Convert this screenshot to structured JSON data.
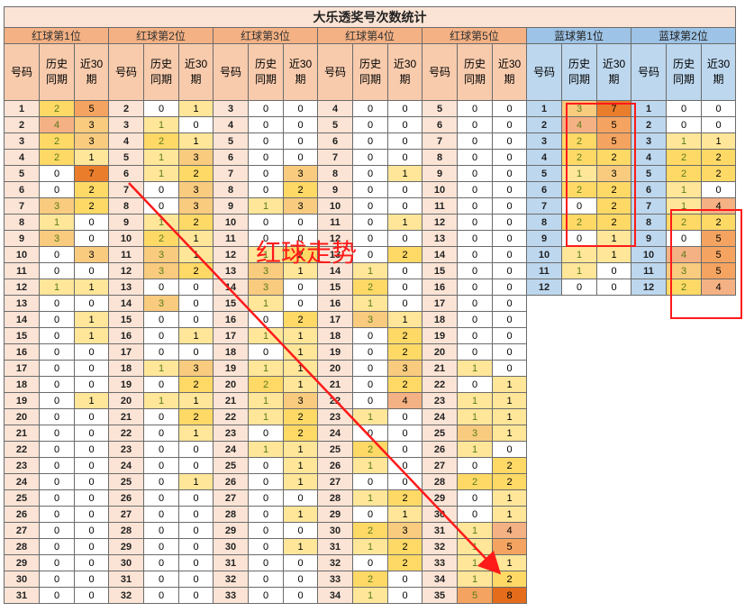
{
  "title": "大乐透奖号次数统计",
  "groups": [
    {
      "label": "红球第1位",
      "type": "red"
    },
    {
      "label": "红球第2位",
      "type": "red"
    },
    {
      "label": "红球第3位",
      "type": "red"
    },
    {
      "label": "红球第4位",
      "type": "red"
    },
    {
      "label": "红球第5位",
      "type": "red"
    },
    {
      "label": "蓝球第1位",
      "type": "blue"
    },
    {
      "label": "蓝球第2位",
      "type": "blue"
    }
  ],
  "col_headers": [
    "号码",
    "历史\n同期",
    "近30\n期"
  ],
  "annotation": "红球走势",
  "rows": [
    [
      [
        1,
        2,
        5
      ],
      [
        2,
        0,
        1
      ],
      [
        3,
        0,
        0
      ],
      [
        4,
        0,
        0
      ],
      [
        5,
        0,
        0
      ],
      [
        1,
        3,
        7
      ],
      [
        1,
        0,
        0
      ]
    ],
    [
      [
        2,
        4,
        3
      ],
      [
        3,
        1,
        0
      ],
      [
        4,
        0,
        0
      ],
      [
        5,
        0,
        0
      ],
      [
        6,
        0,
        0
      ],
      [
        2,
        4,
        5
      ],
      [
        2,
        0,
        0
      ]
    ],
    [
      [
        3,
        2,
        3
      ],
      [
        4,
        2,
        1
      ],
      [
        5,
        0,
        0
      ],
      [
        6,
        0,
        0
      ],
      [
        7,
        0,
        0
      ],
      [
        3,
        2,
        5
      ],
      [
        3,
        1,
        1
      ]
    ],
    [
      [
        4,
        2,
        1
      ],
      [
        5,
        1,
        3
      ],
      [
        6,
        0,
        0
      ],
      [
        7,
        0,
        0
      ],
      [
        8,
        0,
        0
      ],
      [
        4,
        2,
        2
      ],
      [
        4,
        2,
        2
      ]
    ],
    [
      [
        5,
        0,
        7
      ],
      [
        6,
        1,
        2
      ],
      [
        7,
        0,
        3
      ],
      [
        8,
        0,
        1
      ],
      [
        9,
        0,
        0
      ],
      [
        5,
        1,
        3
      ],
      [
        5,
        2,
        2
      ]
    ],
    [
      [
        6,
        0,
        2
      ],
      [
        7,
        0,
        3
      ],
      [
        8,
        0,
        2
      ],
      [
        9,
        0,
        0
      ],
      [
        10,
        0,
        0
      ],
      [
        6,
        2,
        2
      ],
      [
        6,
        1,
        0
      ]
    ],
    [
      [
        7,
        3,
        2
      ],
      [
        8,
        0,
        3
      ],
      [
        9,
        1,
        3
      ],
      [
        10,
        0,
        0
      ],
      [
        11,
        0,
        0
      ],
      [
        7,
        0,
        2
      ],
      [
        7,
        1,
        4
      ]
    ],
    [
      [
        8,
        1,
        0
      ],
      [
        9,
        1,
        2
      ],
      [
        10,
        0,
        0
      ],
      [
        11,
        0,
        1
      ],
      [
        12,
        0,
        0
      ],
      [
        8,
        2,
        2
      ],
      [
        8,
        2,
        2
      ]
    ],
    [
      [
        9,
        3,
        0
      ],
      [
        10,
        2,
        1
      ],
      [
        11,
        0,
        0
      ],
      [
        12,
        0,
        0
      ],
      [
        13,
        0,
        0
      ],
      [
        9,
        0,
        1
      ],
      [
        9,
        0,
        5
      ]
    ],
    [
      [
        10,
        0,
        3
      ],
      [
        11,
        3,
        1
      ],
      [
        12,
        1,
        2
      ],
      [
        13,
        0,
        2
      ],
      [
        14,
        0,
        0
      ],
      [
        10,
        1,
        1
      ],
      [
        10,
        4,
        5
      ]
    ],
    [
      [
        11,
        0,
        0
      ],
      [
        12,
        3,
        2
      ],
      [
        13,
        3,
        1
      ],
      [
        14,
        1,
        0
      ],
      [
        15,
        0,
        0
      ],
      [
        11,
        1,
        0
      ],
      [
        11,
        3,
        5
      ]
    ],
    [
      [
        12,
        1,
        1
      ],
      [
        13,
        0,
        0
      ],
      [
        14,
        3,
        0
      ],
      [
        15,
        2,
        0
      ],
      [
        16,
        0,
        0
      ],
      [
        12,
        0,
        0
      ],
      [
        12,
        2,
        4
      ]
    ],
    [
      [
        13,
        0,
        0
      ],
      [
        14,
        3,
        0
      ],
      [
        15,
        1,
        0
      ],
      [
        16,
        1,
        0
      ],
      [
        17,
        0,
        0
      ],
      null,
      null
    ],
    [
      [
        14,
        0,
        1
      ],
      [
        15,
        0,
        0
      ],
      [
        16,
        0,
        2
      ],
      [
        17,
        3,
        1
      ],
      [
        18,
        0,
        0
      ],
      null,
      null
    ],
    [
      [
        15,
        0,
        1
      ],
      [
        16,
        0,
        1
      ],
      [
        17,
        1,
        1
      ],
      [
        18,
        0,
        2
      ],
      [
        19,
        0,
        0
      ],
      null,
      null
    ],
    [
      [
        16,
        0,
        0
      ],
      [
        17,
        0,
        0
      ],
      [
        18,
        0,
        1
      ],
      [
        19,
        0,
        2
      ],
      [
        20,
        0,
        0
      ],
      null,
      null
    ],
    [
      [
        17,
        0,
        0
      ],
      [
        18,
        1,
        3
      ],
      [
        19,
        1,
        1
      ],
      [
        20,
        0,
        3
      ],
      [
        21,
        1,
        0
      ],
      null,
      null
    ],
    [
      [
        18,
        0,
        0
      ],
      [
        19,
        0,
        2
      ],
      [
        20,
        2,
        1
      ],
      [
        21,
        0,
        2
      ],
      [
        22,
        0,
        1
      ],
      null,
      null
    ],
    [
      [
        19,
        0,
        1
      ],
      [
        20,
        1,
        1
      ],
      [
        21,
        1,
        3
      ],
      [
        22,
        0,
        4
      ],
      [
        23,
        1,
        1
      ],
      null,
      null
    ],
    [
      [
        20,
        0,
        0
      ],
      [
        21,
        0,
        2
      ],
      [
        22,
        1,
        2
      ],
      [
        23,
        1,
        0
      ],
      [
        24,
        1,
        1
      ],
      null,
      null
    ],
    [
      [
        21,
        0,
        0
      ],
      [
        22,
        0,
        1
      ],
      [
        23,
        0,
        2
      ],
      [
        24,
        0,
        0
      ],
      [
        25,
        3,
        1
      ],
      null,
      null
    ],
    [
      [
        22,
        0,
        0
      ],
      [
        23,
        0,
        0
      ],
      [
        24,
        1,
        1
      ],
      [
        25,
        2,
        0
      ],
      [
        26,
        1,
        0
      ],
      null,
      null
    ],
    [
      [
        23,
        0,
        0
      ],
      [
        24,
        0,
        0
      ],
      [
        25,
        0,
        1
      ],
      [
        26,
        1,
        0
      ],
      [
        27,
        0,
        2
      ],
      null,
      null
    ],
    [
      [
        24,
        0,
        0
      ],
      [
        25,
        0,
        1
      ],
      [
        26,
        0,
        1
      ],
      [
        27,
        0,
        0
      ],
      [
        28,
        2,
        2
      ],
      null,
      null
    ],
    [
      [
        25,
        0,
        0
      ],
      [
        26,
        0,
        0
      ],
      [
        27,
        0,
        0
      ],
      [
        28,
        1,
        2
      ],
      [
        29,
        0,
        1
      ],
      null,
      null
    ],
    [
      [
        26,
        0,
        0
      ],
      [
        27,
        0,
        0
      ],
      [
        28,
        0,
        1
      ],
      [
        29,
        0,
        1
      ],
      [
        30,
        0,
        1
      ],
      null,
      null
    ],
    [
      [
        27,
        0,
        0
      ],
      [
        28,
        0,
        0
      ],
      [
        29,
        0,
        0
      ],
      [
        30,
        2,
        3
      ],
      [
        31,
        1,
        4
      ],
      null,
      null
    ],
    [
      [
        28,
        0,
        0
      ],
      [
        29,
        0,
        0
      ],
      [
        30,
        0,
        1
      ],
      [
        31,
        1,
        2
      ],
      [
        32,
        1,
        5
      ],
      null,
      null
    ],
    [
      [
        29,
        0,
        0
      ],
      [
        30,
        0,
        0
      ],
      [
        31,
        0,
        0
      ],
      [
        32,
        0,
        2
      ],
      [
        33,
        1,
        1
      ],
      null,
      null
    ],
    [
      [
        30,
        0,
        0
      ],
      [
        31,
        0,
        0
      ],
      [
        32,
        0,
        0
      ],
      [
        33,
        2,
        0
      ],
      [
        34,
        1,
        2
      ],
      null,
      null
    ],
    [
      [
        31,
        0,
        0
      ],
      [
        32,
        0,
        0
      ],
      [
        33,
        0,
        0
      ],
      [
        34,
        1,
        0
      ],
      [
        35,
        5,
        8
      ],
      null,
      null
    ]
  ]
}
